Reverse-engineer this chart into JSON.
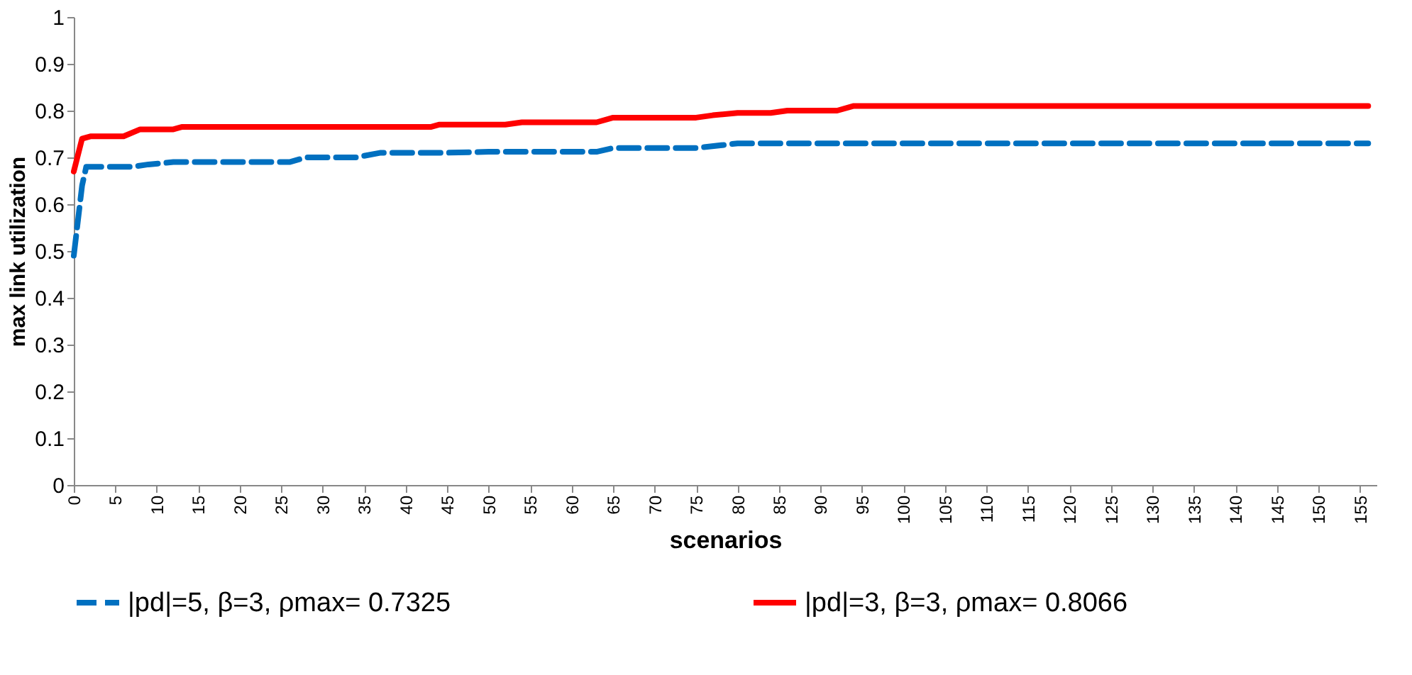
{
  "chart_data": {
    "type": "line",
    "xlabel": "scenarios",
    "ylabel": "max link utilization",
    "xlim": [
      0,
      157
    ],
    "xticks": [
      0,
      5,
      10,
      15,
      20,
      25,
      30,
      35,
      40,
      45,
      50,
      55,
      60,
      65,
      70,
      75,
      80,
      85,
      90,
      95,
      100,
      105,
      110,
      115,
      120,
      125,
      130,
      135,
      140,
      145,
      150,
      155
    ],
    "ylim": [
      0,
      1
    ],
    "yticks": [
      {
        "value": 0,
        "label": "0"
      },
      0.1,
      0.2,
      0.3,
      0.4,
      0.5,
      0.6,
      0.7,
      0.8,
      0.9,
      {
        "value": 1,
        "label": "1"
      }
    ],
    "grid": false,
    "legend": "bottom",
    "series": [
      {
        "name": "|pd|=5, β=3,  ρmax= 0.7325",
        "color": "#0070c0",
        "line_style": "dashed",
        "x": [
          0,
          1,
          1.5,
          7,
          9,
          12,
          26,
          28,
          34,
          37,
          45,
          50,
          63,
          65,
          75,
          80,
          156
        ],
        "values": [
          0.49,
          0.64,
          0.68,
          0.68,
          0.685,
          0.69,
          0.69,
          0.7,
          0.7,
          0.71,
          0.71,
          0.712,
          0.712,
          0.72,
          0.72,
          0.73,
          0.73
        ]
      },
      {
        "name": "|pd|=3, β=3,  ρmax= 0.8066",
        "color": "#ff0000",
        "line_style": "solid",
        "x": [
          0,
          1,
          2,
          6,
          8,
          12,
          13,
          43,
          44,
          52,
          54,
          63,
          65,
          75,
          77,
          80,
          84,
          86,
          92,
          94,
          156
        ],
        "values": [
          0.67,
          0.74,
          0.745,
          0.745,
          0.76,
          0.76,
          0.765,
          0.765,
          0.77,
          0.77,
          0.775,
          0.775,
          0.785,
          0.785,
          0.79,
          0.795,
          0.795,
          0.8,
          0.8,
          0.81,
          0.81
        ]
      }
    ]
  }
}
